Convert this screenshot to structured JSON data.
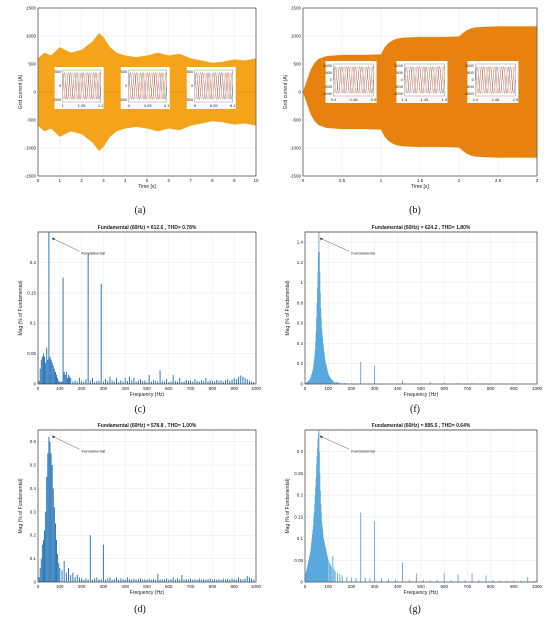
{
  "colors": {
    "orange": "#f5a31a",
    "orange_dark": "#e8820f",
    "blue": "#1f6fb5",
    "blue_light": "#5aa9df"
  },
  "chart_data": [
    {
      "id": "a",
      "panel_label": "(a)",
      "type": "area",
      "title": "",
      "xlabel": "Time [s]",
      "ylabel": "Grid current (A)",
      "xlim": [
        0,
        10
      ],
      "ylim": [
        -1500,
        1500
      ],
      "xticks": [
        0,
        1,
        2,
        3,
        4,
        5,
        6,
        7,
        8,
        9,
        10
      ],
      "yticks": [
        -1500,
        -1000,
        -500,
        0,
        500,
        1000,
        1500
      ],
      "envelope": {
        "t": [
          0,
          0.3,
          0.6,
          1.0,
          1.5,
          2.0,
          2.5,
          2.8,
          3.0,
          3.3,
          3.6,
          4.0,
          4.5,
          5.0,
          5.5,
          6.0,
          6.5,
          7.0,
          7.5,
          8.0,
          8.5,
          9.0,
          9.5,
          10.0
        ],
        "amp": [
          600,
          700,
          650,
          800,
          700,
          750,
          900,
          1050,
          980,
          800,
          700,
          650,
          620,
          650,
          700,
          650,
          680,
          600,
          560,
          520,
          540,
          580,
          560,
          600
        ]
      },
      "insets": [
        {
          "xticks": [
            "1",
            "1.05",
            "1.1"
          ],
          "yticks": [
            "500",
            "0",
            "-500"
          ]
        },
        {
          "xticks": [
            "4",
            "4.05",
            "4.1"
          ],
          "yticks": [
            "500",
            "0",
            "-500"
          ]
        },
        {
          "xticks": [
            "8",
            "8.05",
            "8.1"
          ],
          "yticks": [
            "500",
            "0",
            "-500"
          ]
        }
      ]
    },
    {
      "id": "b",
      "panel_label": "(b)",
      "type": "area",
      "title": "",
      "xlabel": "Time [s]",
      "ylabel": "Grid current (A)",
      "xlim": [
        0,
        3
      ],
      "ylim": [
        -1500,
        1500
      ],
      "xticks": [
        0,
        0.5,
        1,
        1.5,
        2,
        2.5,
        3
      ],
      "yticks": [
        -1500,
        -1000,
        -500,
        0,
        500,
        1000,
        1500
      ],
      "envelope": {
        "t": [
          0,
          0.05,
          0.1,
          0.15,
          0.2,
          0.3,
          0.5,
          0.8,
          1.0,
          1.05,
          1.1,
          1.15,
          1.2,
          1.3,
          1.5,
          1.8,
          2.0,
          2.05,
          2.1,
          2.15,
          2.2,
          2.3,
          2.5,
          2.8,
          3.0
        ],
        "amp": [
          0,
          200,
          400,
          520,
          590,
          640,
          660,
          660,
          670,
          800,
          880,
          920,
          950,
          970,
          980,
          980,
          990,
          1050,
          1100,
          1130,
          1150,
          1160,
          1170,
          1170,
          1170
        ]
      },
      "insets": [
        {
          "xticks": [
            "0.4",
            "0.45",
            "0.5"
          ],
          "yticks": [
            "1000",
            "500",
            "0",
            "-500",
            "-1000"
          ]
        },
        {
          "xticks": [
            "1.4",
            "1.45",
            "1.5"
          ],
          "yticks": [
            "1000",
            "500",
            "0",
            "-500",
            "-1000"
          ]
        },
        {
          "xticks": [
            "2.4",
            "2.45",
            "2.5"
          ],
          "yticks": [
            "1000",
            "500",
            "0",
            "-500",
            "-1000"
          ]
        }
      ]
    },
    {
      "id": "c",
      "panel_label": "(c)",
      "type": "bar",
      "title": "Fundamental (60Hz) = 612.6 , THD= 0.78%",
      "xlabel": "Frequency (Hz)",
      "ylabel": "Mag (% of Fundamental)",
      "xlim": [
        0,
        1000
      ],
      "ylim": [
        0,
        0.25
      ],
      "xticks": [
        0,
        100,
        200,
        300,
        400,
        500,
        600,
        700,
        800,
        900,
        1000
      ],
      "yticks": [
        0,
        0.05,
        0.1,
        0.15,
        0.2
      ],
      "annotation": "Fundamental",
      "bars": {
        "x": [
          5,
          10,
          15,
          20,
          25,
          30,
          35,
          40,
          45,
          50,
          55,
          60,
          65,
          70,
          75,
          80,
          85,
          90,
          95,
          100,
          105,
          110,
          115,
          120,
          125,
          130,
          135,
          140,
          145,
          150,
          160,
          170,
          180,
          190,
          200,
          210,
          220,
          230,
          240,
          250,
          260,
          270,
          280,
          290,
          300,
          310,
          320,
          330,
          340,
          350,
          360,
          370,
          380,
          390,
          400,
          410,
          420,
          430,
          440,
          450,
          460,
          470,
          480,
          490,
          500,
          510,
          520,
          530,
          540,
          550,
          560,
          570,
          580,
          590,
          600,
          610,
          620,
          630,
          640,
          650,
          660,
          670,
          680,
          690,
          700,
          710,
          720,
          730,
          740,
          750,
          760,
          770,
          780,
          790,
          800,
          810,
          820,
          830,
          840,
          850,
          860,
          870,
          880,
          890,
          900,
          910,
          920,
          930,
          940,
          950,
          960,
          970,
          980,
          990
        ],
        "y": [
          0.005,
          0.025,
          0.04,
          0.045,
          0.05,
          0.045,
          0.035,
          0.06,
          0.04,
          0.25,
          0.045,
          0.04,
          0.035,
          0.03,
          0.025,
          0.02,
          0.015,
          0.01,
          0.005,
          0.004,
          0.003,
          0.004,
          0.175,
          0.02,
          0.015,
          0.02,
          0.01,
          0.015,
          0.012,
          0.01,
          0.004,
          0.006,
          0.004,
          0.01,
          0.005,
          0.004,
          0.008,
          0.215,
          0.006,
          0.01,
          0.003,
          0.005,
          0.005,
          0.165,
          0.004,
          0.008,
          0.005,
          0.012,
          0.006,
          0.004,
          0.01,
          0.003,
          0.006,
          0.004,
          0.01,
          0.005,
          0.012,
          0.006,
          0.01,
          0.004,
          0.006,
          0.008,
          0.005,
          0.006,
          0.003,
          0.015,
          0.004,
          0.006,
          0.005,
          0.004,
          0.022,
          0.005,
          0.004,
          0.008,
          0.003,
          0.004,
          0.015,
          0.005,
          0.004,
          0.01,
          0.003,
          0.004,
          0.007,
          0.005,
          0.006,
          0.004,
          0.008,
          0.005,
          0.004,
          0.006,
          0.005,
          0.01,
          0.004,
          0.006,
          0.005,
          0.004,
          0.007,
          0.005,
          0.006,
          0.004,
          0.006,
          0.008,
          0.005,
          0.007,
          0.01,
          0.008,
          0.012,
          0.014,
          0.012,
          0.01,
          0.008,
          0.005,
          0.004,
          0.003
        ]
      }
    },
    {
      "id": "f",
      "panel_label": "(f)",
      "type": "bar",
      "title": "Fundamental (60Hz) = 624.2 , THD= 1.80%",
      "xlabel": "Frequency (Hz)",
      "ylabel": "Mag (% of Fundamental)",
      "xlim": [
        0,
        1000
      ],
      "ylim": [
        0,
        1.5
      ],
      "xticks": [
        0,
        100,
        200,
        300,
        400,
        500,
        600,
        700,
        800,
        900,
        1000
      ],
      "yticks": [
        0,
        0.2,
        0.4,
        0.6,
        0.8,
        1,
        1.2,
        1.4
      ],
      "annotation": "Fundamental",
      "bars": {
        "x": [
          2,
          4,
          6,
          8,
          10,
          12,
          14,
          16,
          18,
          20,
          22,
          24,
          26,
          28,
          30,
          32,
          34,
          36,
          38,
          40,
          42,
          44,
          46,
          48,
          50,
          52,
          54,
          56,
          58,
          60,
          62,
          64,
          66,
          68,
          70,
          72,
          74,
          76,
          78,
          80,
          82,
          84,
          86,
          88,
          90,
          92,
          94,
          96,
          98,
          100,
          102,
          104,
          106,
          108,
          110,
          112,
          114,
          116,
          118,
          120,
          125,
          130,
          135,
          140,
          145,
          150,
          160,
          170,
          180,
          200,
          220,
          240,
          260,
          280,
          300,
          350,
          420,
          480,
          540,
          600,
          660,
          720,
          780,
          840,
          900,
          960
        ],
        "y": [
          0.01,
          0.01,
          0.015,
          0.02,
          0.02,
          0.025,
          0.03,
          0.03,
          0.035,
          0.04,
          0.05,
          0.06,
          0.07,
          0.09,
          0.1,
          0.12,
          0.14,
          0.16,
          0.2,
          0.24,
          0.28,
          0.34,
          0.42,
          0.52,
          0.65,
          0.8,
          0.95,
          1.1,
          1.3,
          1.5,
          1.3,
          1.1,
          0.9,
          0.75,
          0.65,
          0.55,
          0.5,
          0.45,
          0.4,
          0.36,
          0.32,
          0.28,
          0.25,
          0.22,
          0.2,
          0.18,
          0.16,
          0.14,
          0.12,
          0.1,
          0.09,
          0.08,
          0.07,
          0.06,
          0.055,
          0.05,
          0.045,
          0.04,
          0.035,
          0.03,
          0.025,
          0.02,
          0.02,
          0.015,
          0.015,
          0.012,
          0.01,
          0.01,
          0.008,
          0.006,
          0.006,
          0.22,
          0.005,
          0.004,
          0.18,
          0.004,
          0.04,
          0.003,
          0.02,
          0.015,
          0.01,
          0.01,
          0.008,
          0.006,
          0.005,
          0.004
        ]
      }
    },
    {
      "id": "d",
      "panel_label": "(d)",
      "type": "bar",
      "title": "Fundamental (60Hz) = 578.8 , THD= 1.00%",
      "xlabel": "Frequency (Hz)",
      "ylabel": "Mag (% of Fundamental)",
      "xlim": [
        0,
        1000
      ],
      "ylim": [
        0,
        0.65
      ],
      "xticks": [
        0,
        100,
        200,
        300,
        400,
        500,
        600,
        700,
        800,
        900,
        1000
      ],
      "yticks": [
        0,
        0.1,
        0.2,
        0.3,
        0.4,
        0.5,
        0.6
      ],
      "annotation": "Fundamental",
      "bars": {
        "x": [
          5,
          10,
          15,
          20,
          25,
          30,
          35,
          40,
          45,
          50,
          55,
          60,
          65,
          70,
          75,
          80,
          85,
          90,
          95,
          100,
          110,
          120,
          130,
          140,
          150,
          160,
          170,
          180,
          190,
          200,
          210,
          220,
          230,
          240,
          250,
          260,
          270,
          280,
          290,
          300,
          310,
          320,
          330,
          340,
          350,
          360,
          370,
          380,
          390,
          400,
          410,
          420,
          430,
          440,
          450,
          460,
          470,
          480,
          490,
          500,
          510,
          520,
          530,
          540,
          550,
          560,
          570,
          580,
          590,
          600,
          610,
          620,
          630,
          640,
          650,
          660,
          670,
          680,
          690,
          700,
          710,
          720,
          730,
          740,
          750,
          760,
          770,
          780,
          790,
          800,
          810,
          820,
          830,
          840,
          850,
          860,
          870,
          880,
          890,
          900,
          910,
          920,
          930,
          940,
          950,
          960,
          970,
          980,
          990
        ],
        "y": [
          0.02,
          0.06,
          0.1,
          0.16,
          0.18,
          0.22,
          0.3,
          0.45,
          0.55,
          0.62,
          0.6,
          0.55,
          0.5,
          0.4,
          0.32,
          0.25,
          0.18,
          0.12,
          0.08,
          0.06,
          0.05,
          0.09,
          0.04,
          0.06,
          0.03,
          0.04,
          0.02,
          0.03,
          0.02,
          0.015,
          0.01,
          0.015,
          0.01,
          0.2,
          0.01,
          0.015,
          0.02,
          0.01,
          0.012,
          0.16,
          0.01,
          0.015,
          0.02,
          0.01,
          0.012,
          0.02,
          0.01,
          0.015,
          0.012,
          0.01,
          0.02,
          0.012,
          0.01,
          0.015,
          0.01,
          0.012,
          0.015,
          0.01,
          0.012,
          0.01,
          0.015,
          0.01,
          0.012,
          0.01,
          0.035,
          0.01,
          0.012,
          0.01,
          0.015,
          0.01,
          0.012,
          0.02,
          0.01,
          0.015,
          0.01,
          0.03,
          0.01,
          0.012,
          0.01,
          0.015,
          0.01,
          0.012,
          0.01,
          0.015,
          0.01,
          0.012,
          0.01,
          0.012,
          0.015,
          0.01,
          0.012,
          0.01,
          0.012,
          0.01,
          0.015,
          0.01,
          0.012,
          0.01,
          0.015,
          0.012,
          0.01,
          0.02,
          0.012,
          0.01,
          0.015,
          0.025,
          0.02,
          0.015,
          0.01
        ]
      }
    },
    {
      "id": "g",
      "panel_label": "(g)",
      "type": "bar",
      "title": "Fundamental (60Hz) = 895.5 , THD= 0.64%",
      "xlabel": "Frequency (Hz)",
      "ylabel": "Mag (% of Fundamental)",
      "xlim": [
        0,
        1000
      ],
      "ylim": [
        0,
        0.35
      ],
      "xticks": [
        0,
        100,
        200,
        300,
        400,
        500,
        600,
        700,
        800,
        900,
        1000
      ],
      "yticks": [
        0,
        0.05,
        0.1,
        0.15,
        0.2,
        0.25,
        0.3
      ],
      "annotation": "Fundamental",
      "bars": {
        "x": [
          2,
          4,
          6,
          8,
          10,
          12,
          14,
          16,
          18,
          20,
          22,
          24,
          26,
          28,
          30,
          32,
          34,
          36,
          38,
          40,
          42,
          44,
          46,
          48,
          50,
          52,
          54,
          56,
          58,
          60,
          62,
          64,
          66,
          68,
          70,
          72,
          74,
          76,
          78,
          80,
          82,
          84,
          86,
          88,
          90,
          92,
          94,
          96,
          98,
          100,
          105,
          110,
          115,
          120,
          125,
          130,
          140,
          150,
          160,
          180,
          200,
          220,
          240,
          260,
          280,
          300,
          330,
          360,
          390,
          420,
          450,
          480,
          510,
          540,
          570,
          600,
          630,
          660,
          690,
          720,
          750,
          780,
          810,
          840,
          870,
          900,
          930,
          960,
          990
        ],
        "y": [
          0.01,
          0.02,
          0.025,
          0.03,
          0.035,
          0.04,
          0.045,
          0.05,
          0.055,
          0.06,
          0.065,
          0.07,
          0.08,
          0.09,
          0.1,
          0.11,
          0.12,
          0.13,
          0.15,
          0.16,
          0.18,
          0.2,
          0.22,
          0.24,
          0.27,
          0.29,
          0.31,
          0.33,
          0.34,
          0.35,
          0.3,
          0.25,
          0.21,
          0.18,
          0.16,
          0.14,
          0.13,
          0.12,
          0.11,
          0.1,
          0.095,
          0.09,
          0.085,
          0.08,
          0.075,
          0.07,
          0.065,
          0.06,
          0.055,
          0.05,
          0.045,
          0.04,
          0.035,
          0.06,
          0.03,
          0.025,
          0.02,
          0.018,
          0.015,
          0.012,
          0.01,
          0.01,
          0.16,
          0.01,
          0.008,
          0.14,
          0.008,
          0.006,
          0.005,
          0.045,
          0.005,
          0.02,
          0.005,
          0.004,
          0.004,
          0.02,
          0.004,
          0.018,
          0.004,
          0.02,
          0.004,
          0.015,
          0.004,
          0.003,
          0.003,
          0.003,
          0.003,
          0.012,
          0.003
        ]
      }
    }
  ]
}
